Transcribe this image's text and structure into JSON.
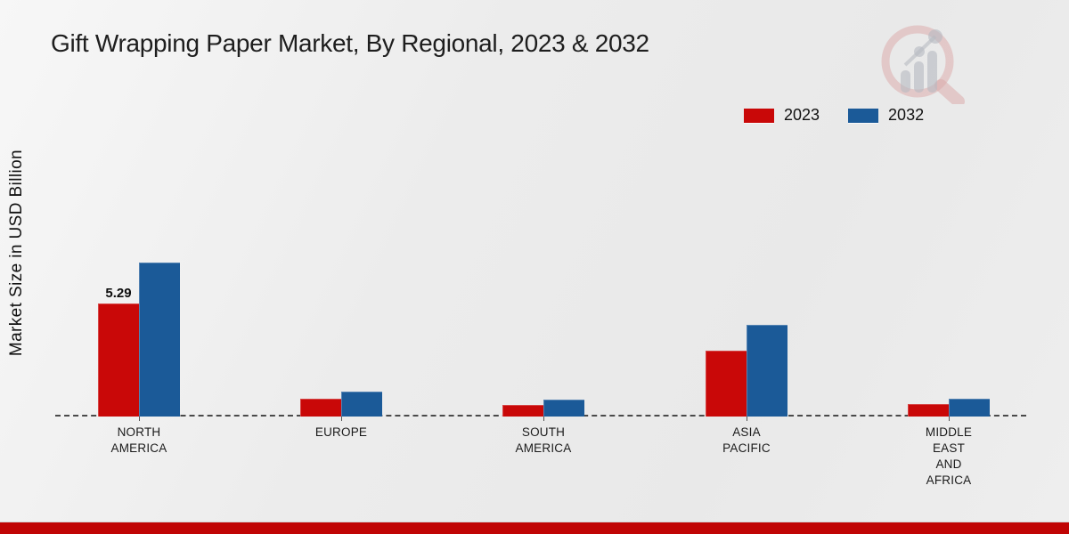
{
  "title": "Gift Wrapping Paper Market, By Regional, 2023 & 2032",
  "y_axis_label": "Market Size in USD Billion",
  "legend": [
    {
      "label": "2023",
      "color": "#c90808"
    },
    {
      "label": "2032",
      "color": "#1b5a98"
    }
  ],
  "chart_data": {
    "type": "bar",
    "title": "Gift Wrapping Paper Market, By Regional, 2023 & 2032",
    "ylabel": "Market Size in USD Billion",
    "xlabel": "",
    "ylim": [
      0,
      8
    ],
    "grid": false,
    "baseline_style": "dashed",
    "legend_position": "top-right",
    "categories": [
      "North America",
      "Europe",
      "South America",
      "Asia Pacific",
      "Middle East and Africa"
    ],
    "category_display": [
      [
        "NORTH",
        "AMERICA"
      ],
      [
        "EUROPE"
      ],
      [
        "SOUTH",
        "AMERICA"
      ],
      [
        "ASIA",
        "PACIFIC"
      ],
      [
        "MIDDLE",
        "EAST",
        "AND",
        "AFRICA"
      ]
    ],
    "series": [
      {
        "name": "2023",
        "color": "#c90808",
        "values": [
          5.29,
          0.85,
          0.55,
          3.1,
          0.6
        ]
      },
      {
        "name": "2032",
        "color": "#1b5a98",
        "values": [
          7.2,
          1.15,
          0.8,
          4.3,
          0.85
        ]
      }
    ],
    "data_labels": [
      {
        "series": "2023",
        "category": "North America",
        "text": "5.29"
      }
    ]
  },
  "colors": {
    "background_start": "#f7f7f7",
    "background_end": "#e9e9e9",
    "series_2023": "#c90808",
    "series_2032": "#1b5a98",
    "baseline": "#4a4a4a",
    "text": "#1b1b1b",
    "footer_stripe": "#c00404",
    "watermark_ring": "#dba8a8",
    "watermark_bars": "#b7bac2"
  },
  "watermark": {
    "name": "magnifier-growth-chart-logo"
  }
}
